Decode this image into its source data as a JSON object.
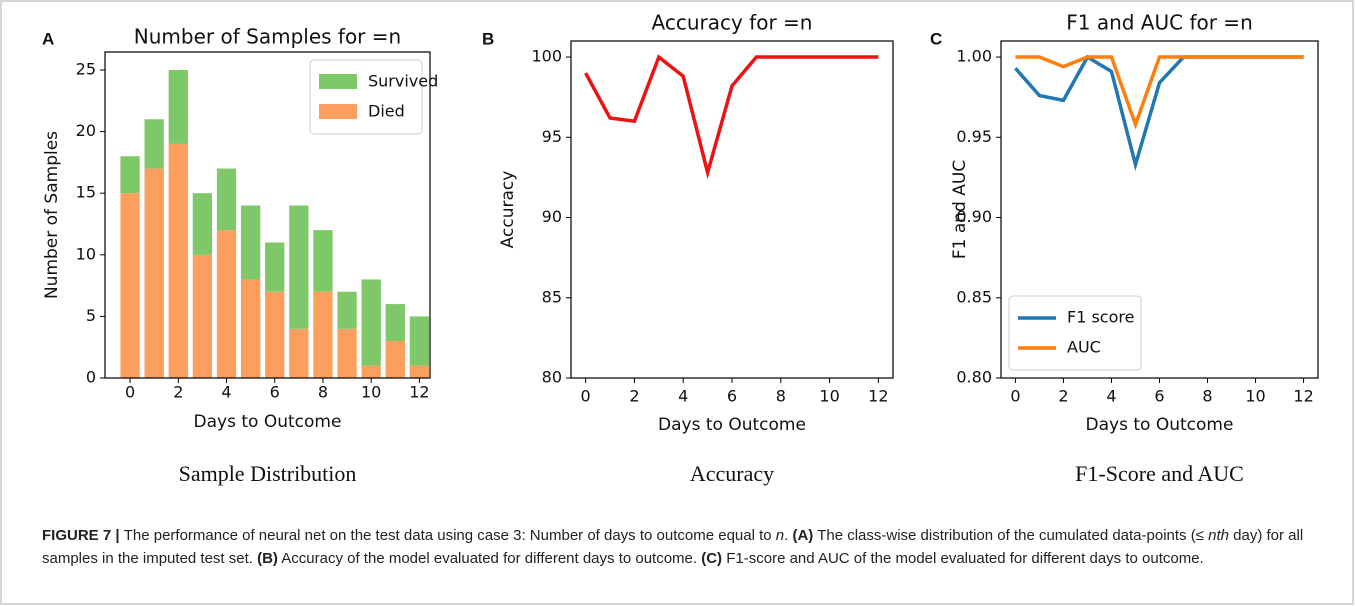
{
  "chart_data": [
    {
      "type": "bar",
      "stacked": true,
      "panel_label": "A",
      "title": "Number of Samples for =n",
      "xlabel": "Days to Outcome",
      "ylabel": "Number of Samples",
      "subcaption": "Sample Distribution",
      "x": [
        0,
        1,
        2,
        3,
        4,
        5,
        6,
        7,
        8,
        9,
        10,
        11,
        12
      ],
      "series": [
        {
          "name": "Survived",
          "color": "#7ec86a",
          "values": [
            3,
            4,
            6,
            5,
            5,
            6,
            4,
            10,
            5,
            3,
            7,
            3,
            4
          ]
        },
        {
          "name": "Died",
          "color": "#fb9e5e",
          "values": [
            15,
            17,
            19,
            10,
            12,
            8,
            7,
            4,
            7,
            4,
            1,
            3,
            1
          ]
        }
      ],
      "xlim": [
        -1.04,
        12.44
      ],
      "xticks": [
        0,
        2,
        4,
        6,
        8,
        10,
        12
      ],
      "ylim": [
        0,
        26.46
      ],
      "yticks": [
        0,
        5,
        10,
        15,
        20,
        25
      ],
      "legend_loc": "upper right"
    },
    {
      "type": "line",
      "panel_label": "B",
      "title": "Accuracy for =n",
      "xlabel": "Days to Outcome",
      "ylabel": "Accuracy",
      "subcaption": "Accuracy",
      "x": [
        0,
        1,
        2,
        3,
        4,
        5,
        6,
        7,
        8,
        9,
        10,
        11,
        12
      ],
      "series": [
        {
          "color": "#ee1111",
          "values": [
            99,
            96.2,
            96,
            100,
            98.8,
            92.8,
            98.2,
            100,
            100,
            100,
            100,
            100,
            100
          ]
        }
      ],
      "xlim": [
        -0.6,
        12.6
      ],
      "xticks": [
        0,
        2,
        4,
        6,
        8,
        10,
        12
      ],
      "ylim": [
        80,
        101
      ],
      "yticks": [
        80,
        85,
        90,
        95,
        100
      ]
    },
    {
      "type": "line",
      "panel_label": "C",
      "title": "F1 and AUC for =n",
      "xlabel": "Days to Outcome",
      "ylabel": "F1 and AUC",
      "subcaption": "F1-Score and AUC",
      "x": [
        0,
        1,
        2,
        3,
        4,
        5,
        6,
        7,
        8,
        9,
        10,
        11,
        12
      ],
      "series": [
        {
          "name": "F1 score",
          "color": "#1f77b4",
          "values": [
            0.993,
            0.976,
            0.973,
            1.0,
            0.991,
            0.933,
            0.984,
            1.0,
            1.0,
            1.0,
            1.0,
            1.0,
            1.0
          ]
        },
        {
          "name": "AUC",
          "color": "#ff7f0e",
          "values": [
            1.0,
            1.0,
            0.994,
            1.0,
            1.0,
            0.958,
            1.0,
            1.0,
            1.0,
            1.0,
            1.0,
            1.0,
            1.0
          ]
        }
      ],
      "xlim": [
        -0.6,
        12.6
      ],
      "xticks": [
        0,
        2,
        4,
        6,
        8,
        10,
        12
      ],
      "ylim": [
        0.8,
        1.01
      ],
      "yticks": [
        {
          "value": 0.8,
          "label": "0.80"
        },
        {
          "value": 0.85,
          "label": "0.85"
        },
        {
          "value": 0.9,
          "label": "0.90"
        },
        {
          "value": 0.95,
          "label": "0.95"
        },
        {
          "value": 1.0,
          "label": "1.00"
        }
      ],
      "legend_loc": "lower left"
    }
  ],
  "caption": [
    {
      "text": "FIGURE 7 | ",
      "bold": true
    },
    {
      "text": "The performance of neural net on the test data using case 3: Number of days to outcome equal to "
    },
    {
      "text": "n",
      "italic": true
    },
    {
      "text": ". "
    },
    {
      "text": "(A)",
      "bold": true
    },
    {
      "text": " The class-wise distribution of the cumulated data-points (≤ "
    },
    {
      "text": "nth",
      "italic": true
    },
    {
      "text": " day) for all samples in the imputed test set. "
    },
    {
      "text": "(B)",
      "bold": true
    },
    {
      "text": " Accuracy of the model evaluated for different days to outcome. "
    },
    {
      "text": "(C)",
      "bold": true
    },
    {
      "text": " F1-score and AUC of the model evaluated for different days to outcome."
    }
  ]
}
